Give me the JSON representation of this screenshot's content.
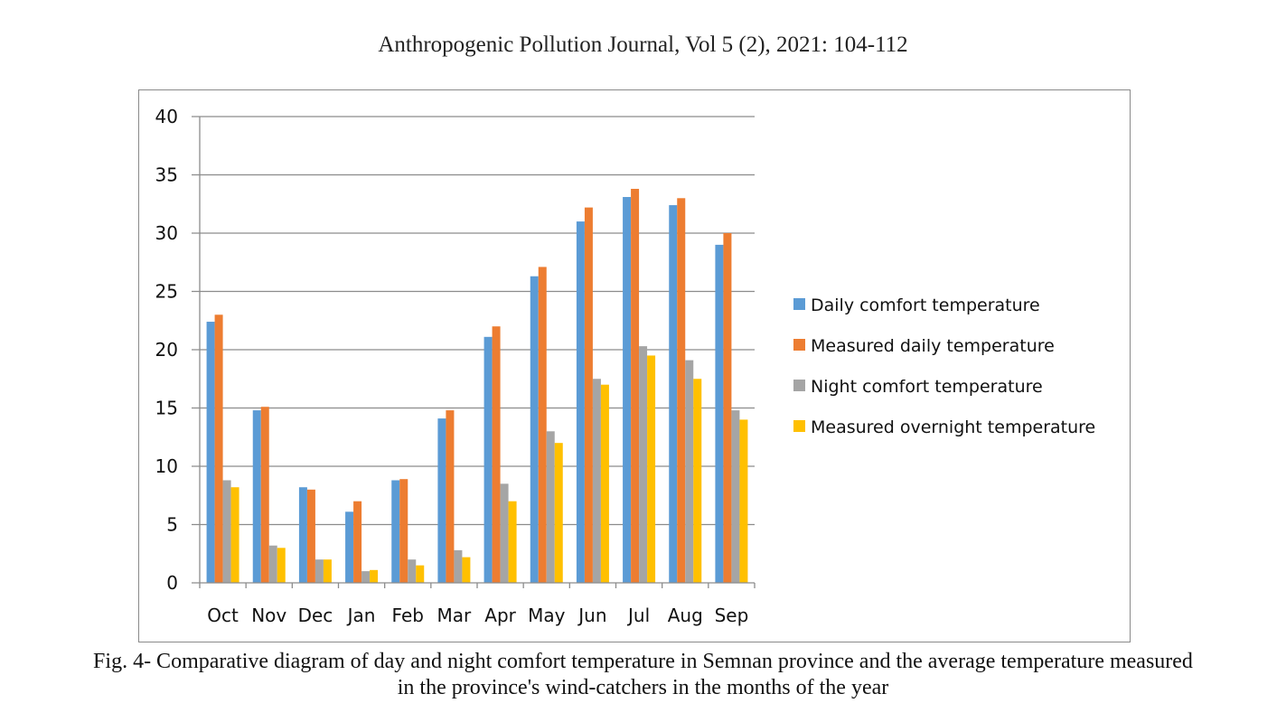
{
  "header": {
    "text": "Anthropogenic Pollution Journal, Vol 5 (2), 2021: 104-112"
  },
  "caption": {
    "line1": "Fig. 4- Comparative diagram of day and night comfort temperature in Semnan province and the average temperature measured",
    "line2": "in the province's wind-catchers in the months of the year"
  },
  "chart_data": {
    "type": "bar",
    "title": "",
    "xlabel": "",
    "ylabel": "",
    "ylim": [
      0,
      40
    ],
    "yticks": [
      "0",
      "5",
      "10",
      "15",
      "20",
      "25",
      "30",
      "35",
      "40"
    ],
    "grid": true,
    "legend_position": "right",
    "categories": [
      "Oct",
      "Nov",
      "Dec",
      "Jan",
      "Feb",
      "Mar",
      "Apr",
      "May",
      "Jun",
      "Jul",
      "Aug",
      "Sep"
    ],
    "series": [
      {
        "name": "Daily comfort temperature",
        "color": "#5b9bd5",
        "values": [
          22.4,
          14.8,
          8.2,
          6.1,
          8.8,
          14.1,
          21.1,
          26.3,
          31.0,
          33.1,
          32.4,
          29.0
        ]
      },
      {
        "name": "Measured daily temperature",
        "color": "#ed7d31",
        "values": [
          23.0,
          15.1,
          8.0,
          7.0,
          8.9,
          14.8,
          22.0,
          27.1,
          32.2,
          33.8,
          33.0,
          30.0
        ]
      },
      {
        "name": "Night comfort temperature",
        "color": "#a5a5a5",
        "values": [
          8.8,
          3.2,
          2.0,
          1.0,
          2.0,
          2.8,
          8.5,
          13.0,
          17.5,
          20.3,
          19.1,
          14.8
        ]
      },
      {
        "name": "Measured overnight temperature",
        "color": "#ffc000",
        "values": [
          8.2,
          3.0,
          2.0,
          1.1,
          1.5,
          2.2,
          7.0,
          12.0,
          17.0,
          19.5,
          17.5,
          14.0
        ]
      }
    ]
  }
}
